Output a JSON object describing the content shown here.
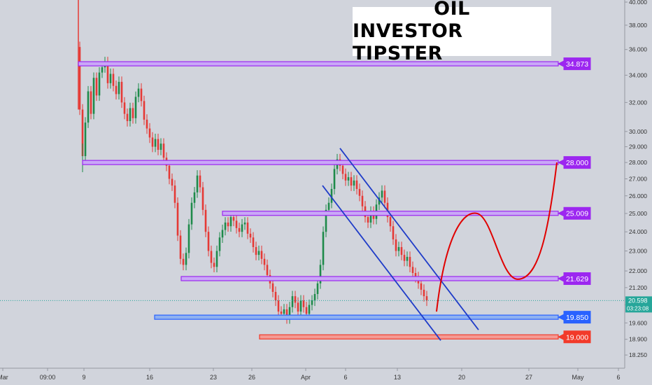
{
  "chart_data": {
    "type": "candlestick",
    "title_lines": [
      "OIL",
      "INVESTOR TIPSTER"
    ],
    "y_axis": {
      "min": 18.0,
      "max": 40.0,
      "scale": "log",
      "ticks": [
        "40.000",
        "38.000",
        "36.000",
        "34.000",
        "32.000",
        "30.000",
        "29.000",
        "28.000",
        "27.000",
        "26.000",
        "25.000",
        "24.000",
        "23.000",
        "22.000",
        "21.200",
        "20.400",
        "19.600",
        "18.900",
        "18.250"
      ]
    },
    "x_axis": {
      "labels": [
        "Mar",
        "09:00",
        "9",
        "16",
        "23",
        "26",
        "Apr",
        "6",
        "13",
        "20",
        "27",
        "May",
        "6"
      ]
    },
    "current_price": {
      "label": "20.598",
      "countdown": "03:23:08",
      "value": 20.598,
      "color": "#26a69a"
    },
    "levels": [
      {
        "value": 34.873,
        "label": "34.873",
        "color": "#9c27f0",
        "type": "resistance"
      },
      {
        "value": 28.0,
        "label": "28.000",
        "color": "#9c27f0",
        "type": "resistance"
      },
      {
        "value": 25.009,
        "label": "25.009",
        "color": "#9c27f0",
        "type": "resistance"
      },
      {
        "value": 21.629,
        "label": "21.629",
        "color": "#9c27f0",
        "type": "resistance"
      },
      {
        "value": 19.85,
        "label": "19.850",
        "color": "#2962ff",
        "type": "support"
      },
      {
        "value": 19.0,
        "label": "19.000",
        "color": "#f23a2a",
        "type": "support"
      }
    ],
    "annotations": [
      "descending channel (blue)",
      "projected path (red curve)"
    ],
    "colors": {
      "up": "#1e8a4a",
      "down": "#e53935",
      "channel": "#1f3cc8",
      "projection": "#e00000",
      "background": "#d1d4dc"
    },
    "grid": false
  }
}
